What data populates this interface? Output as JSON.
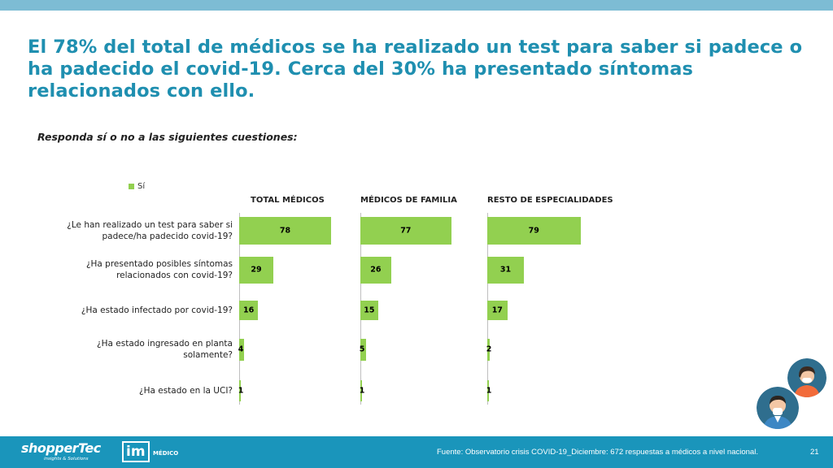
{
  "headline": "El 78% del total de médicos se ha realizado un test para saber si padece o ha padecido el covid-19. Cerca del 30% ha presentado síntomas relacionados con ello.",
  "question_prompt": "Responda sí o no a las siguientes cuestiones:",
  "colors": {
    "bar": "#92d050",
    "title": "#1f8fb0",
    "footer": "#1a95bb",
    "top_band": "#7dbcd4"
  },
  "chart_data": {
    "type": "bar",
    "orientation": "horizontal",
    "legend": [
      "Sí"
    ],
    "panels": [
      {
        "name": "TOTAL MÉDICOS",
        "values": [
          78,
          29,
          16,
          4,
          1
        ]
      },
      {
        "name": "MÉDICOS DE FAMILIA",
        "values": [
          77,
          26,
          15,
          5,
          1
        ]
      },
      {
        "name": "RESTO DE ESPECIALIDADES",
        "values": [
          79,
          31,
          17,
          2,
          1
        ]
      }
    ],
    "categories": [
      [
        "¿Le han realizado un test para saber si",
        "padece/ha padecido covid-19?"
      ],
      [
        "¿Ha presentado posibles síntomas",
        "relacionados con covid-19?"
      ],
      [
        "¿Ha estado infectado por covid-19?"
      ],
      [
        "¿Ha estado ingresado en planta",
        "solamente?"
      ],
      [
        "¿Ha estado en la UCI?"
      ]
    ],
    "xlim": [
      0,
      100
    ]
  },
  "footer": {
    "logo_main": "shopperTec",
    "logo_sub": "insights & Solutions",
    "logo_im": "im",
    "logo_im_sub": "MÉDICO",
    "source": "Fuente: Observatorio crisis COVID-19_Diciembre: 672 respuestas a médicos a nivel nacional.",
    "page_number": "21"
  }
}
